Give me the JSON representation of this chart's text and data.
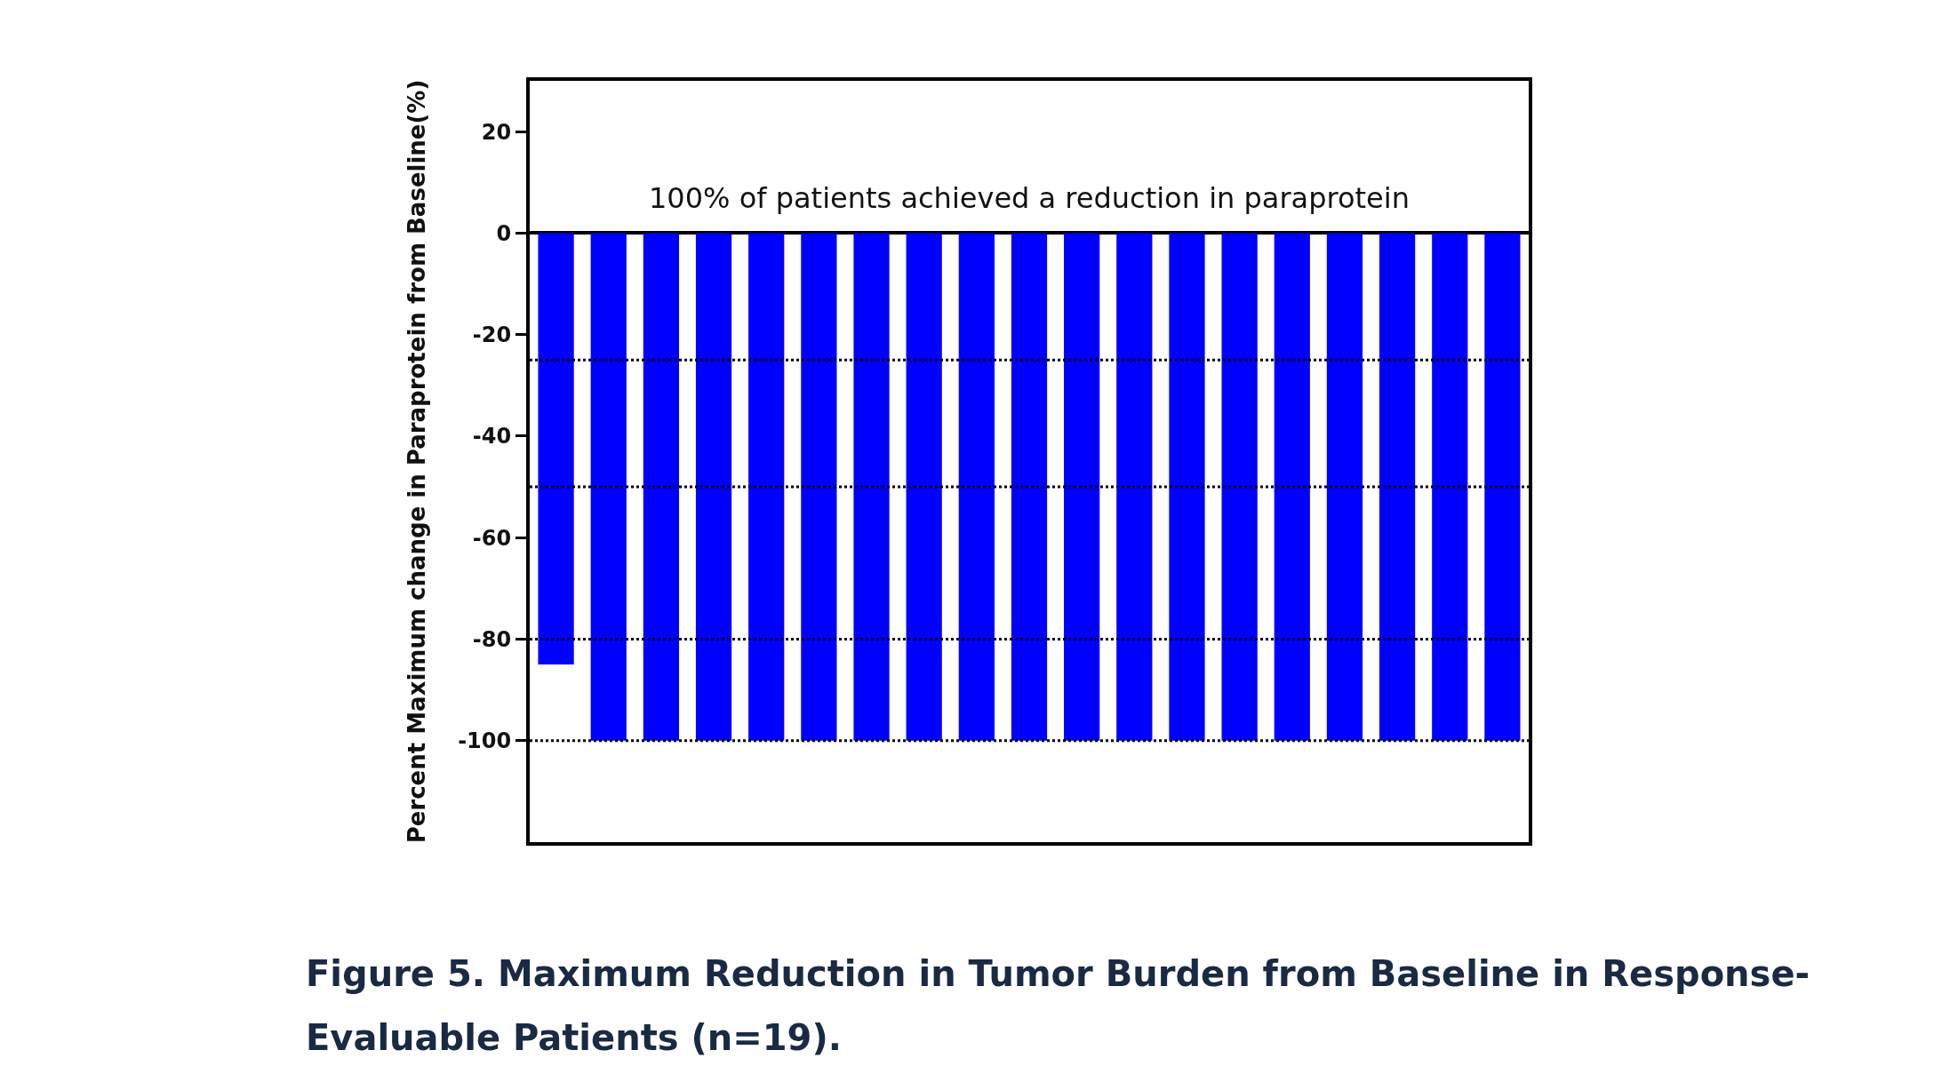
{
  "chart_data": {
    "type": "bar",
    "ylabel": "Percent Maximum change in Paraprotein from Baseline(%)",
    "categories": [
      null,
      null,
      null,
      null,
      null,
      null,
      null,
      null,
      null,
      null,
      null,
      null,
      null,
      null,
      null,
      null,
      null,
      null,
      null
    ],
    "values": [
      -85,
      -100,
      -100,
      -100,
      -100,
      -100,
      -100,
      -100,
      -100,
      -100,
      -100,
      -100,
      -100,
      -100,
      -100,
      -100,
      -100,
      -100,
      -100
    ],
    "color": "#0000ff",
    "ylim": [
      -120,
      30
    ],
    "yticks": [
      20,
      0,
      -20,
      -40,
      -60,
      -80,
      -100
    ],
    "grid": false,
    "legend": false,
    "tick_labels": "y",
    "ref_lines": [
      {
        "axis": "y",
        "value": -25,
        "color": "#000000",
        "line_style": "dotted"
      },
      {
        "axis": "y",
        "value": -50,
        "color": "#000000",
        "line_style": "dotted"
      },
      {
        "axis": "y",
        "value": -80,
        "color": "#000000",
        "line_style": "dotted"
      },
      {
        "axis": "y",
        "value": -100,
        "color": "#000000",
        "line_style": "dotted"
      }
    ],
    "annotations": [
      "100% of patients achieved a reduction in paraprotein",
      "Figure 5. Maximum Reduction in Tumor Burden from Baseline in Response-Evaluable Patients (n=19)."
    ]
  }
}
